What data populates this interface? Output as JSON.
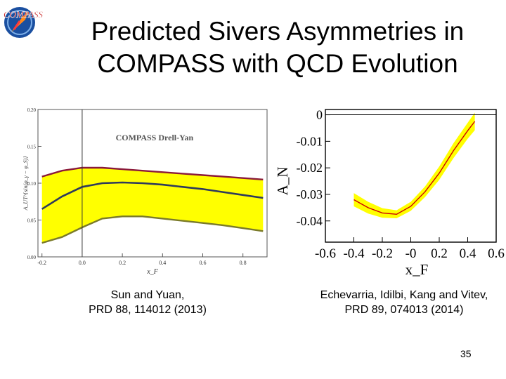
{
  "slide": {
    "title_line1": "Predicted Sivers Asymmetries in",
    "title_line2": "COMPASS with QCD Evolution",
    "logo_text": "COMPASS",
    "page_number": "35",
    "caption_left": [
      "Sun and Yuan,",
      "PRD 88, 114012 (2013)"
    ],
    "caption_right": [
      "Echevarria, Idilbi, Kang and Vitev,",
      "PRD 89, 074013 (2014)"
    ]
  },
  "chart_data": [
    {
      "type": "area",
      "title": "COMPASS Drell-Yan",
      "xlabel": "x_F",
      "ylabel": "A_UT^{sin(φ_γ − φ_S)}",
      "xlim": [
        -0.22,
        0.92
      ],
      "ylim": [
        0,
        0.2
      ],
      "x_ticks": [
        "-0.2",
        "0.0",
        "0.2",
        "0.4",
        "0.6",
        "0.8"
      ],
      "y_ticks": [
        "0.00",
        "0.05",
        "0.10",
        "0.15",
        "0.20"
      ],
      "vertical_line_x": 0.0,
      "band_color": "#ffff00",
      "x": [
        -0.2,
        -0.1,
        0.0,
        0.1,
        0.2,
        0.3,
        0.4,
        0.5,
        0.6,
        0.7,
        0.8,
        0.9
      ],
      "series": [
        {
          "role": "upper",
          "color": "#8b1a3a",
          "values": [
            0.109,
            0.117,
            0.121,
            0.121,
            0.119,
            0.117,
            0.115,
            0.113,
            0.111,
            0.109,
            0.107,
            0.105
          ]
        },
        {
          "role": "central",
          "color": "#2e3a5c",
          "values": [
            0.065,
            0.082,
            0.095,
            0.1,
            0.101,
            0.1,
            0.098,
            0.095,
            0.092,
            0.088,
            0.084,
            0.08
          ]
        },
        {
          "role": "lower",
          "color": "#7a7a2a",
          "values": [
            0.019,
            0.027,
            0.04,
            0.052,
            0.055,
            0.055,
            0.052,
            0.049,
            0.046,
            0.043,
            0.039,
            0.035
          ]
        }
      ]
    },
    {
      "type": "area",
      "xlabel": "x_F",
      "ylabel": "A_N",
      "xlim": [
        -0.6,
        0.6
      ],
      "ylim": [
        -0.048,
        0.002
      ],
      "x_ticks": [
        "-0.6",
        "-0.4",
        "-0.2",
        "-0",
        "0.2",
        "0.4",
        "0.6"
      ],
      "y_ticks": [
        "0",
        "-0.01",
        "-0.02",
        "-0.03",
        "-0.04"
      ],
      "band_color": "#ffff00",
      "line_color": "#cc0000",
      "x": [
        -0.4,
        -0.3,
        -0.2,
        -0.1,
        0.0,
        0.1,
        0.2,
        0.3,
        0.4,
        0.45
      ],
      "central": [
        -0.032,
        -0.035,
        -0.037,
        -0.0375,
        -0.0345,
        -0.029,
        -0.022,
        -0.0135,
        -0.006,
        -0.0025
      ],
      "band_half_width": [
        0.0025,
        0.0022,
        0.0018,
        0.0015,
        0.0017,
        0.002,
        0.0025,
        0.0028,
        0.003,
        0.0033
      ]
    }
  ]
}
